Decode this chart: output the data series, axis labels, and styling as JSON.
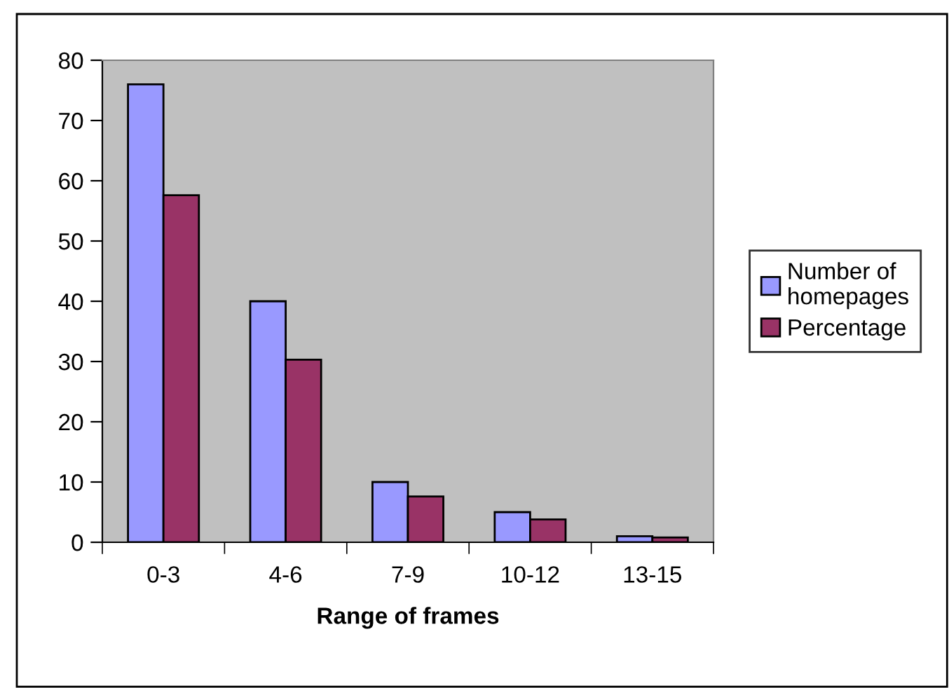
{
  "chart_data": {
    "type": "bar",
    "xlabel": "Range of frames",
    "categories": [
      "0-3",
      "4-6",
      "7-9",
      "10-12",
      "13-15"
    ],
    "series": [
      {
        "name": "Number of homepages",
        "color": "#9999ff",
        "values": [
          76,
          40,
          10,
          5,
          1
        ]
      },
      {
        "name": "Percentage",
        "color": "#993366",
        "values": [
          57.6,
          30.3,
          7.6,
          3.8,
          0.8
        ]
      }
    ],
    "ylim": [
      0,
      80
    ],
    "yticks": [
      0,
      10,
      20,
      30,
      40,
      50,
      60,
      70,
      80
    ],
    "grid": false,
    "legend": "right"
  }
}
